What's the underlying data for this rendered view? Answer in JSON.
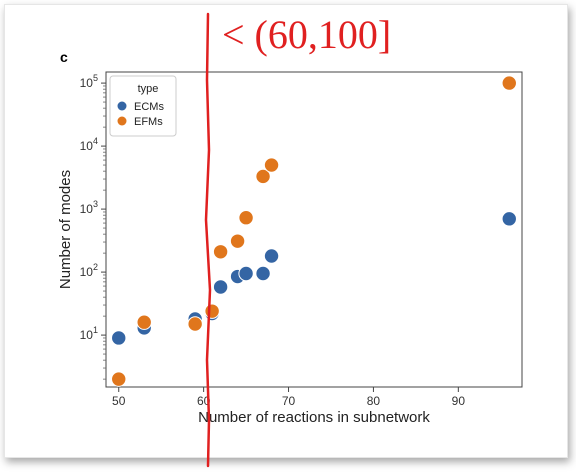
{
  "panel_label": "c",
  "annotation": {
    "text": "< (60,100]",
    "color": "#e02020"
  },
  "colors": {
    "ECMs": "#3465a4",
    "EFMs": "#e0761c",
    "annotation": "#e02020"
  },
  "chart_data": {
    "type": "scatter",
    "title": "",
    "xlabel": "Number of reactions in subnetwork",
    "ylabel": "Number of modes",
    "xlim": [
      48.5,
      97.5
    ],
    "ylim": [
      1.5,
      150000
    ],
    "yscale": "log",
    "xticks": [
      50,
      60,
      70,
      80,
      90
    ],
    "yticks": [
      {
        "base": "10",
        "exp": "1",
        "value": 10
      },
      {
        "base": "10",
        "exp": "2",
        "value": 100
      },
      {
        "base": "10",
        "exp": "3",
        "value": 1000
      },
      {
        "base": "10",
        "exp": "4",
        "value": 10000
      },
      {
        "base": "10",
        "exp": "5",
        "value": 100000
      }
    ],
    "grid": false,
    "legend": {
      "title": "type",
      "placement": "top-left"
    },
    "series": [
      {
        "name": "ECMs",
        "color": "#3465a4",
        "points": [
          {
            "x": 50,
            "y": 9
          },
          {
            "x": 53,
            "y": 13
          },
          {
            "x": 59,
            "y": 18
          },
          {
            "x": 61,
            "y": 22
          },
          {
            "x": 62,
            "y": 58
          },
          {
            "x": 64,
            "y": 85
          },
          {
            "x": 65,
            "y": 95
          },
          {
            "x": 67,
            "y": 95
          },
          {
            "x": 68,
            "y": 180
          },
          {
            "x": 96,
            "y": 700
          }
        ]
      },
      {
        "name": "EFMs",
        "color": "#e0761c",
        "points": [
          {
            "x": 50,
            "y": 2
          },
          {
            "x": 53,
            "y": 16
          },
          {
            "x": 59,
            "y": 15
          },
          {
            "x": 61,
            "y": 24
          },
          {
            "x": 62,
            "y": 210
          },
          {
            "x": 64,
            "y": 310
          },
          {
            "x": 65,
            "y": 730
          },
          {
            "x": 67,
            "y": 3300
          },
          {
            "x": 68,
            "y": 5000
          },
          {
            "x": 96,
            "y": 100000
          }
        ]
      }
    ]
  }
}
